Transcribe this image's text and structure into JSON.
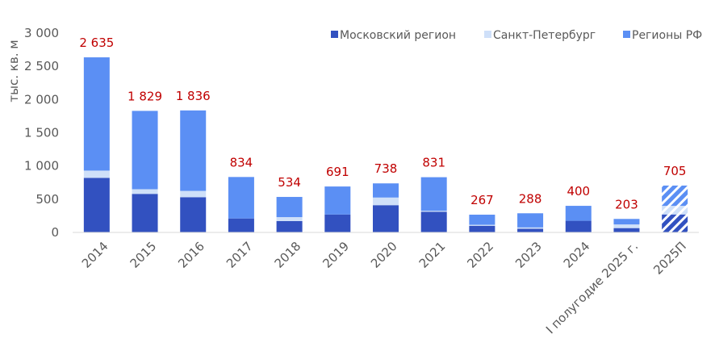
{
  "chart_data": {
    "type": "bar",
    "stacked": true,
    "ylabel": "тыс. кв. м",
    "ylim": [
      0,
      3000
    ],
    "yticks": [
      0,
      500,
      1000,
      1500,
      2000,
      2500,
      3000
    ],
    "ytick_labels": [
      "0",
      "500",
      "1 000",
      "1 500",
      "2 000",
      "2 500",
      "3 000"
    ],
    "grid": false,
    "legend_position": "top-right",
    "categories": [
      "2014",
      "2015",
      "2016",
      "2017",
      "2018",
      "2019",
      "2020",
      "2021",
      "2022",
      "2023",
      "2024",
      "I полугодие 2025 г.",
      "2025П"
    ],
    "series": [
      {
        "name": "Московский регион",
        "color": "#3251c0",
        "values": [
          820,
          580,
          530,
          210,
          170,
          270,
          410,
          310,
          100,
          55,
          175,
          65,
          270
        ]
      },
      {
        "name": "Санкт-Петербург",
        "color": "#cfe0f9",
        "values": [
          110,
          70,
          95,
          0,
          60,
          0,
          115,
          15,
          15,
          20,
          0,
          55,
          130
        ]
      },
      {
        "name": "Регионы РФ",
        "color": "#5b8ff4",
        "values": [
          1705,
          1179,
          1211,
          624,
          304,
          421,
          213,
          506,
          152,
          213,
          225,
          83,
          305
        ]
      }
    ],
    "totals": [
      2635,
      1829,
      1836,
      834,
      534,
      691,
      738,
      831,
      267,
      288,
      400,
      203,
      705
    ],
    "total_labels": [
      "2 635",
      "1 829",
      "1 836",
      "834",
      "534",
      "691",
      "738",
      "831",
      "267",
      "288",
      "400",
      "203",
      "705"
    ],
    "forecast_category": "2025П",
    "forecast_style": "hatched"
  }
}
